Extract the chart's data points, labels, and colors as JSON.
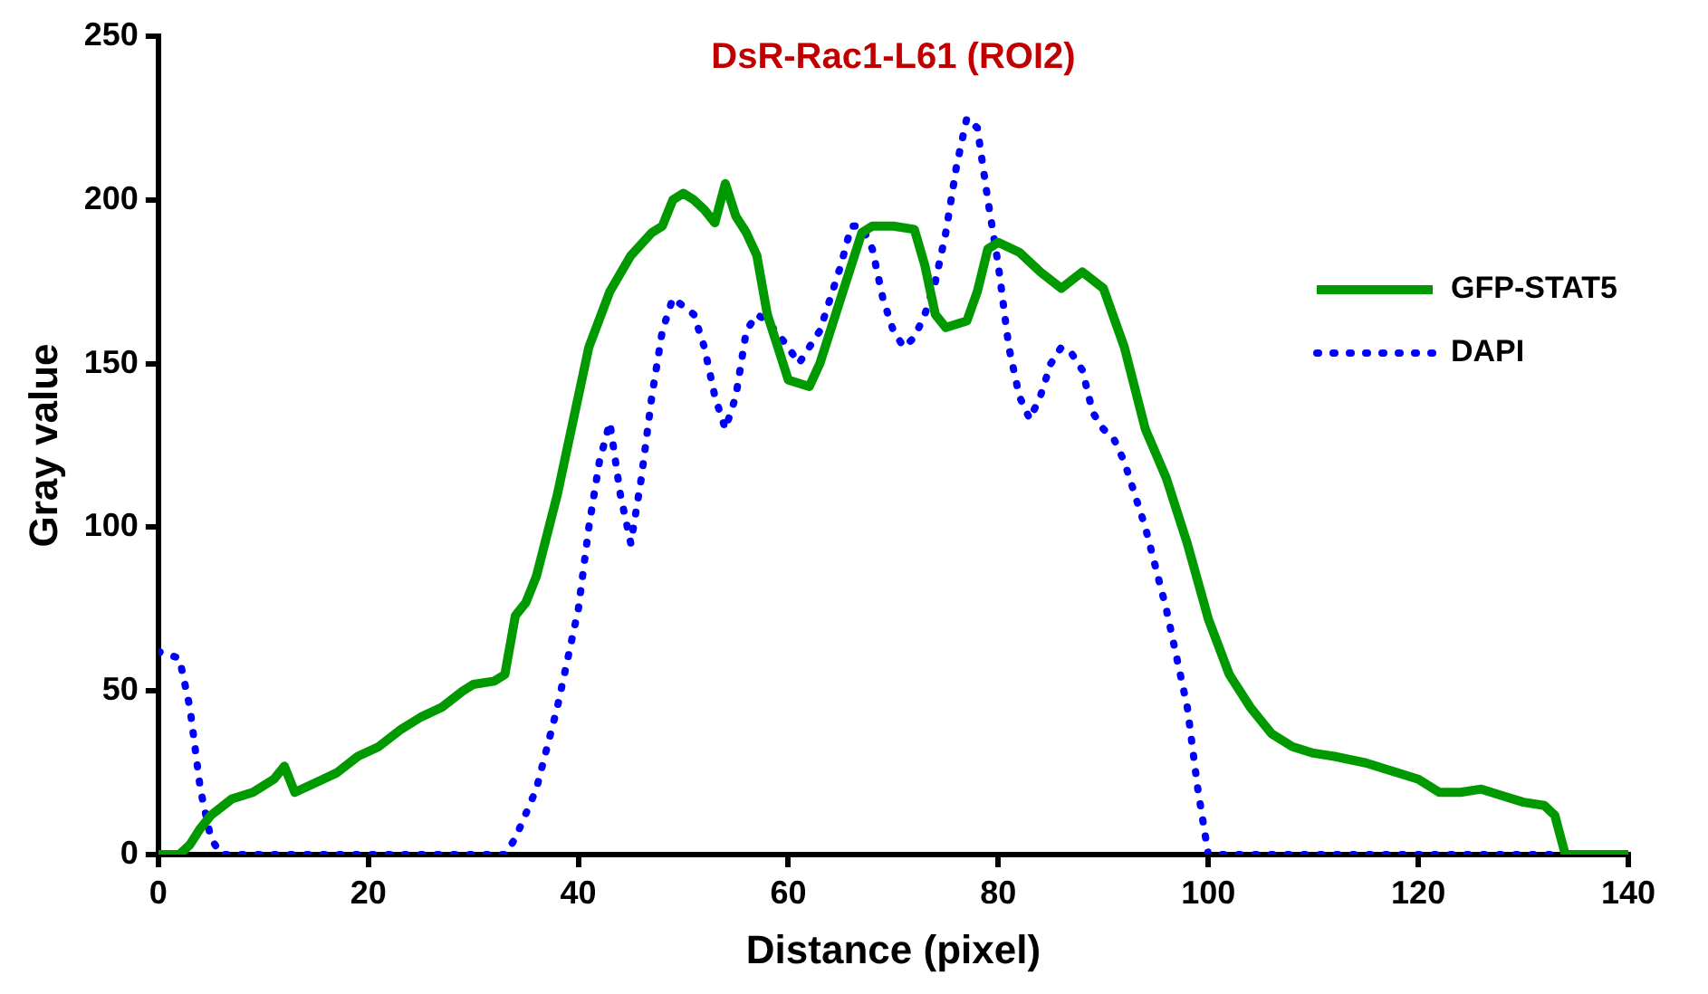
{
  "chart_data": {
    "type": "line",
    "title": "DsR-Rac1-L61 (ROI2)",
    "xlabel": "Distance (pixel)",
    "ylabel": "Gray value",
    "xlim": [
      0,
      140
    ],
    "xticks": [
      0,
      20,
      40,
      60,
      80,
      100,
      120,
      140
    ],
    "ylim": [
      0,
      250
    ],
    "yticks": [
      0,
      50,
      100,
      150,
      200,
      250
    ],
    "grid": false,
    "legend": "right",
    "marker": "none",
    "series": [
      {
        "name": "GFP-STAT5",
        "color": "#009900",
        "line_style": "solid",
        "x": [
          0,
          2,
          3,
          4,
          5,
          7,
          9,
          11,
          12,
          13,
          15,
          17,
          19,
          21,
          23,
          25,
          27,
          29,
          30,
          32,
          33,
          34,
          35,
          36,
          38,
          40,
          41,
          43,
          45,
          47,
          48,
          49,
          50,
          51,
          52,
          53,
          54,
          55,
          56,
          57,
          58,
          59,
          60,
          62,
          63,
          65,
          67,
          68,
          70,
          72,
          73,
          74,
          75,
          77,
          78,
          79,
          80,
          82,
          84,
          86,
          88,
          90,
          92,
          94,
          96,
          98,
          100,
          102,
          104,
          106,
          108,
          110,
          112,
          115,
          118,
          120,
          122,
          124,
          126,
          128,
          130,
          132,
          133,
          134,
          140
        ],
        "values": [
          0,
          0,
          3,
          8,
          12,
          17,
          19,
          23,
          27,
          19,
          22,
          25,
          30,
          33,
          38,
          42,
          45,
          50,
          52,
          53,
          55,
          73,
          77,
          85,
          110,
          140,
          155,
          172,
          183,
          190,
          192,
          200,
          202,
          200,
          197,
          193,
          205,
          195,
          190,
          183,
          165,
          155,
          145,
          143,
          150,
          170,
          190,
          192,
          192,
          191,
          180,
          165,
          161,
          163,
          172,
          185,
          187,
          184,
          178,
          173,
          178,
          173,
          155,
          130,
          115,
          95,
          72,
          55,
          45,
          37,
          33,
          31,
          30,
          28,
          25,
          23,
          19,
          19,
          20,
          18,
          16,
          15,
          12,
          0,
          0
        ]
      },
      {
        "name": "DAPI",
        "color": "#0000ff",
        "line_style": "dotted",
        "x": [
          0,
          2,
          3,
          4,
          5,
          6,
          33,
          34,
          36,
          38,
          40,
          41,
          42,
          43,
          44,
          45,
          46,
          47,
          48,
          49,
          51,
          52,
          53,
          54,
          55,
          56,
          57,
          58,
          60,
          61,
          63,
          65,
          66,
          67,
          68,
          69,
          70,
          71,
          72,
          73,
          74,
          75,
          76,
          77,
          78,
          79,
          80,
          81,
          82,
          83,
          84,
          85,
          86,
          87,
          88,
          89,
          90,
          91,
          92,
          94,
          96,
          98,
          99,
          100,
          140
        ],
        "values": [
          62,
          60,
          45,
          20,
          5,
          0,
          0,
          5,
          20,
          45,
          75,
          100,
          120,
          132,
          110,
          95,
          115,
          140,
          160,
          170,
          165,
          155,
          140,
          130,
          140,
          160,
          165,
          163,
          155,
          150,
          160,
          180,
          192,
          192,
          185,
          170,
          160,
          155,
          158,
          165,
          175,
          190,
          210,
          225,
          222,
          200,
          180,
          155,
          140,
          133,
          140,
          150,
          155,
          153,
          148,
          135,
          130,
          127,
          120,
          100,
          75,
          45,
          20,
          0,
          0
        ]
      }
    ]
  }
}
